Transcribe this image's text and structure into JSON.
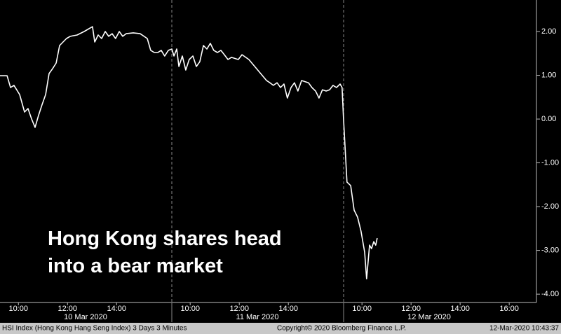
{
  "chart_data": {
    "type": "line",
    "annotation": [
      "Hong Kong shares head",
      "into a bear market"
    ],
    "footer_left": "HSI Index (Hong Kong Hang Seng Index) 3 Days 3 Minutes",
    "footer_center": "Copyright© 2020 Bloomberg Finance L.P.",
    "footer_right": "12-Mar-2020 10:43:37",
    "date_labels": [
      "10 Mar 2020",
      "11 Mar 2020",
      "12 Mar 2020"
    ],
    "color": "#ffffff",
    "xlim": [
      0,
      21.86
    ],
    "ylim": [
      -4.19,
      2.72
    ],
    "xticks": [
      {
        "value": 0.75,
        "label": "10:00"
      },
      {
        "value": 2.75,
        "label": "12:00"
      },
      {
        "value": 4.75,
        "label": "14:00"
      },
      {
        "value": 7.75,
        "label": "10:00"
      },
      {
        "value": 9.75,
        "label": "12:00"
      },
      {
        "value": 11.75,
        "label": "14:00"
      },
      {
        "value": 14.75,
        "label": "10:00"
      },
      {
        "value": 16.75,
        "label": "12:00"
      },
      {
        "value": 18.75,
        "label": "14:00"
      },
      {
        "value": 20.75,
        "label": "16:00"
      }
    ],
    "yticks": [
      {
        "value": 2,
        "label": "2.00"
      },
      {
        "value": 1,
        "label": "1.00"
      },
      {
        "value": 0,
        "label": "0.00"
      },
      {
        "value": -1,
        "label": "-1.00"
      },
      {
        "value": -2,
        "label": "-2.00"
      },
      {
        "value": -3,
        "label": "-3.00"
      },
      {
        "value": -4,
        "label": "-4.00"
      }
    ],
    "x": [
      0,
      0.29,
      0.43,
      0.57,
      0.8,
      1.0,
      1.14,
      1.29,
      1.43,
      1.57,
      1.71,
      1.86,
      2.0,
      2.14,
      2.29,
      2.43,
      2.57,
      2.71,
      2.86,
      3.14,
      3.43,
      3.77,
      3.86,
      4.0,
      4.14,
      4.29,
      4.43,
      4.57,
      4.71,
      4.86,
      5.0,
      5.14,
      5.43,
      5.71,
      6.0,
      6.14,
      6.29,
      6.43,
      6.57,
      6.71,
      6.86,
      7.0,
      7.09,
      7.2,
      7.29,
      7.43,
      7.57,
      7.71,
      7.86,
      8.0,
      8.14,
      8.29,
      8.43,
      8.57,
      8.71,
      8.86,
      9.0,
      9.14,
      9.29,
      9.43,
      9.71,
      9.86,
      10.14,
      10.86,
      11.0,
      11.14,
      11.29,
      11.43,
      11.57,
      11.71,
      11.86,
      12.0,
      12.14,
      12.29,
      12.57,
      12.71,
      12.86,
      13.0,
      13.14,
      13.29,
      13.43,
      13.57,
      13.71,
      13.86,
      13.94,
      14.0,
      14.14,
      14.29,
      14.43,
      14.57,
      14.71,
      14.86,
      14.94,
      15.06,
      15.14,
      15.23,
      15.31,
      15.37
    ],
    "values": [
      0.99,
      0.99,
      0.72,
      0.77,
      0.56,
      0.16,
      0.24,
      0,
      -0.19,
      0.08,
      0.32,
      0.56,
      1.04,
      1.15,
      1.28,
      1.68,
      1.76,
      1.84,
      1.89,
      1.92,
      2.0,
      2.11,
      1.76,
      1.92,
      1.84,
      2.0,
      1.89,
      1.95,
      1.84,
      2.0,
      1.89,
      1.95,
      1.97,
      1.95,
      1.84,
      1.57,
      1.52,
      1.52,
      1.57,
      1.44,
      1.57,
      1.6,
      1.44,
      1.6,
      1.2,
      1.44,
      1.12,
      1.36,
      1.44,
      1.2,
      1.31,
      1.68,
      1.6,
      1.73,
      1.57,
      1.52,
      1.57,
      1.47,
      1.36,
      1.41,
      1.36,
      1.47,
      1.36,
      0.88,
      0.83,
      0.77,
      0.83,
      0.72,
      0.8,
      0.48,
      0.72,
      0.83,
      0.64,
      0.88,
      0.83,
      0.72,
      0.64,
      0.48,
      0.67,
      0.64,
      0.67,
      0.77,
      0.72,
      0.8,
      0.72,
      0,
      -1.44,
      -1.52,
      -2.08,
      -2.24,
      -2.56,
      -3.04,
      -3.65,
      -2.88,
      -2.96,
      -2.8,
      -2.88,
      -2.72
    ]
  }
}
